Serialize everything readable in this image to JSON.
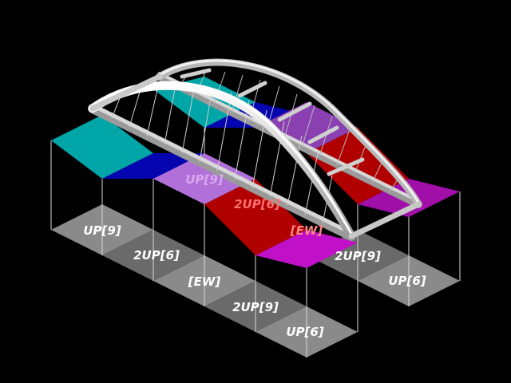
{
  "background": "#000000",
  "ground_labels": [
    {
      "text": "UP[9]"
    },
    {
      "text": "2UP[6]"
    },
    {
      "text": "[EW]"
    },
    {
      "text": "2UP[9]"
    },
    {
      "text": "UP[6]"
    },
    {
      "text": "2UP[9]"
    },
    {
      "text": "UP[6]"
    }
  ],
  "deck_labels": [
    {
      "text": "UP[9]",
      "color": "#d8a8f0"
    },
    {
      "text": "2UP[6]",
      "color": "#ff7070"
    },
    {
      "text": "[EW]",
      "color": "#ff8888"
    }
  ],
  "colors": {
    "cyan": "#00a5a8",
    "blue": "#0505b0",
    "lavender": "#b070d8",
    "red": "#b00000",
    "magenta": "#c010c8",
    "ground_light": "#8a8a8a",
    "ground_dark": "#6a6a6a",
    "bridge": "#dcdcdc"
  }
}
